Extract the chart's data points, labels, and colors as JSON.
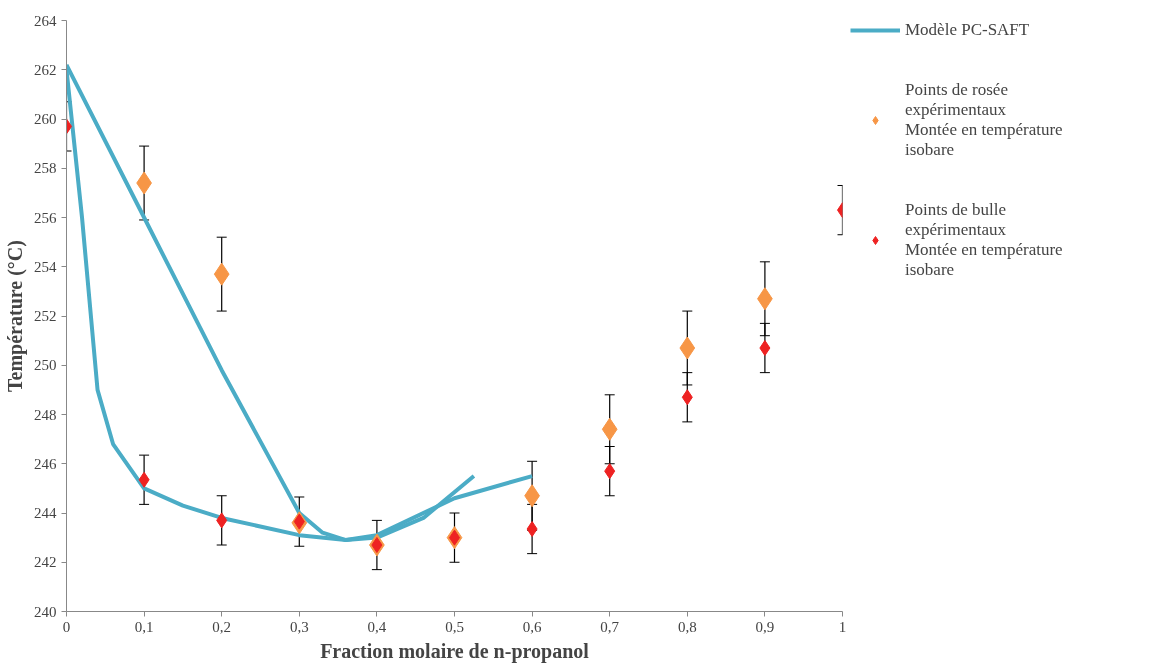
{
  "chart_data": {
    "type": "scatter",
    "xlabel": "Fraction molaire de n-propanol",
    "ylabel": "Température (°C)",
    "xlim": [
      0,
      1
    ],
    "ylim": [
      240,
      264
    ],
    "xticks": [
      0,
      {
        "value": 0.1,
        "label": "0,1"
      },
      {
        "value": 0.2,
        "label": "0,2"
      },
      {
        "value": 0.3,
        "label": "0,3"
      },
      {
        "value": 0.4,
        "label": "0,4"
      },
      {
        "value": 0.5,
        "label": "0,5"
      },
      {
        "value": 0.6,
        "label": "0,6"
      },
      {
        "value": 0.7,
        "label": "0,7"
      },
      {
        "value": 0.8,
        "label": "0,8"
      },
      {
        "value": 0.9,
        "label": "0,9"
      },
      1
    ],
    "yticks": [
      240,
      242,
      244,
      246,
      248,
      250,
      252,
      254,
      256,
      258,
      260,
      262,
      264
    ],
    "grid": false,
    "legend": "right",
    "marker": "diamond",
    "series": [
      {
        "type": "line",
        "name": "Modèle PC-SAFT",
        "color": "#4bacc6",
        "marker": "none",
        "x": [
          0,
          0.1,
          0.2,
          0.3,
          0.33,
          0.36,
          0.4,
          0.5,
          0.6
        ],
        "values": [
          262.2,
          256,
          249.8,
          244,
          243.2,
          242.9,
          243.1,
          244.6,
          245.5
        ]
      },
      {
        "type": "line",
        "color": "#4bacc6",
        "marker": "none",
        "x": [
          0,
          0.02,
          0.04,
          0.06,
          0.1,
          0.15,
          0.2,
          0.3,
          0.36,
          0.4,
          0.46,
          0.525
        ],
        "values": [
          262,
          256,
          249,
          246.8,
          245,
          244.3,
          243.8,
          243.1,
          242.9,
          243,
          243.8,
          245.5
        ]
      },
      {
        "name": "Points de rosée\nexpérimentaux\nMontée en température\nisobare",
        "color": "#f79646",
        "x": [
          0.1,
          0.2,
          0.3,
          0.4,
          0.5,
          0.6,
          0.7,
          0.8,
          0.9
        ],
        "values": [
          257.4,
          253.7,
          243.6,
          242.7,
          243.0,
          244.7,
          247.4,
          250.7,
          252.7
        ],
        "errors": [
          1.5,
          1.5,
          null,
          null,
          null,
          1.4,
          1.4,
          1.5,
          1.5
        ]
      },
      {
        "name": "Points de bulle\nexpérimentaux\nMontée en température\nisobare",
        "color": "#ee2222",
        "x": [
          0,
          0.1,
          0.2,
          0.3,
          0.4,
          0.5,
          0.6,
          0.7,
          0.8,
          0.9,
          1
        ],
        "values": [
          259.7,
          245.35,
          243.7,
          243.65,
          242.7,
          243.0,
          243.35,
          245.7,
          248.7,
          250.7,
          256.3
        ],
        "errors": [
          1,
          1,
          1,
          1,
          1,
          1,
          1,
          1,
          1,
          1,
          1
        ]
      }
    ]
  }
}
